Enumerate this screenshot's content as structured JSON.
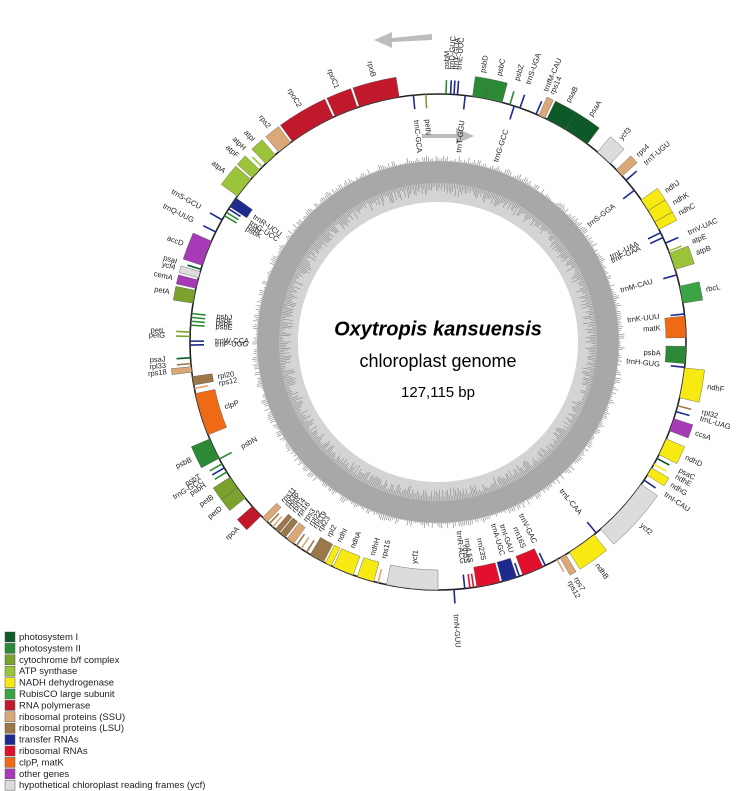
{
  "title": "Oxytropis kansuensis",
  "subtitle": "chloroplast genome",
  "size": "127,115 bp",
  "genes": [
    "psbM",
    "trnD-GUC",
    "trnY-GUA",
    "trnE-UUC",
    "trnT-GGU",
    "psbD",
    "psbC",
    "psbZ",
    "trnG-GCC",
    "trnS-UGA",
    "trnfM-CAU",
    "rps14",
    "psaB",
    "psaA",
    "ycf3",
    "rps4",
    "trnT-UGU",
    "trnS-GGA",
    "ndhJ",
    "ndhK",
    "ndhC",
    "trnL-UAA",
    "trnF-GAA",
    "trnV-UAC",
    "atpE",
    "atpB",
    "trnM-CAU",
    "rbcL",
    "trnK-UUU",
    "matK",
    "psbA",
    "trnH-GUG",
    "ndhF",
    "rpl32",
    "trnL-UAG",
    "ccsA",
    "ndhD",
    "psaC",
    "ndhE",
    "ndhG",
    "trnI-CAU",
    "ycf2",
    "trnL-CAA",
    "ndhB",
    "rps7",
    "rps12",
    "trnV-GAC",
    "rrn16S",
    "trnI-GAU",
    "trnA-UGC",
    "rrn23S",
    "rrn4.5S",
    "rrn5S",
    "trnR-ACG",
    "trnN-GUU",
    "ycf1",
    "rps15",
    "ndhH",
    "ndhA",
    "ndhI",
    "rpl2",
    "rpl23",
    "rps19",
    "rpl22",
    "rps3",
    "rpl16",
    "rpl14",
    "rps8",
    "rpl36",
    "rps11",
    "rpoA",
    "petD",
    "petB",
    "psbH",
    "trnG-GCC",
    "psbT",
    "psbN",
    "psbB",
    "clpP",
    "rps12",
    "rpl20",
    "rps18",
    "rpl33",
    "psaJ",
    "trnP-UGG",
    "trnW-CCA",
    "petG",
    "petL",
    "psbE",
    "psbF",
    "psbL",
    "psbJ",
    "petA",
    "cemA",
    "ycf4",
    "psaI",
    "accD",
    "trnQ-UUG",
    "trnS-GCU",
    "psbK",
    "psbI",
    "trnG-UCC",
    "trnR-UCU",
    "atpA",
    "atpF",
    "atpH",
    "atpI",
    "rps2",
    "rpoC2",
    "rpoC1",
    "rpoB",
    "trnC-GCA",
    "petN"
  ],
  "legend": [
    {
      "label": "photosystem I",
      "color": "#0d5a28"
    },
    {
      "label": "photosystem II",
      "color": "#2c8a36"
    },
    {
      "label": "cytochrome b/f complex",
      "color": "#7aa22c"
    },
    {
      "label": "ATP synthase",
      "color": "#9cc43a"
    },
    {
      "label": "NADH dehydrogenase",
      "color": "#f6ea12"
    },
    {
      "label": "RubisCO large subunit",
      "color": "#3ca445"
    },
    {
      "label": "RNA polymerase",
      "color": "#c2182b"
    },
    {
      "label": "ribosomal proteins (SSU)",
      "color": "#dba878"
    },
    {
      "label": "ribosomal proteins (LSU)",
      "color": "#9c7747"
    },
    {
      "label": "transfer RNAs",
      "color": "#1e2a8e"
    },
    {
      "label": "ribosomal RNAs",
      "color": "#e2102d"
    },
    {
      "label": "clpP, matK",
      "color": "#ef6a14"
    },
    {
      "label": "other genes",
      "color": "#a73ab6"
    },
    {
      "label": "hypothetical chloroplast reading frames (ycf)",
      "color": "#dcdcdc"
    }
  ]
}
